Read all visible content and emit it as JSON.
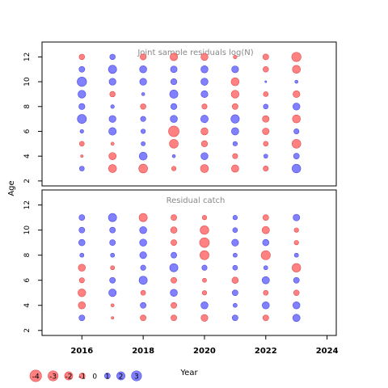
{
  "chart_data": [
    {
      "type": "scatter",
      "title": "Joint sample residuals log(N)",
      "xlabel": "Year",
      "ylabel": "Age",
      "xlim": [
        2014.7,
        2024.3
      ],
      "ylim": [
        1.6,
        13.2
      ],
      "yticks": [
        2,
        4,
        6,
        8,
        10,
        12
      ],
      "grid": false,
      "years": [
        2016,
        2017,
        2018,
        2019,
        2020,
        2021,
        2022,
        2023
      ],
      "ages": [
        3,
        4,
        5,
        6,
        7,
        8,
        9,
        10,
        11,
        12
      ],
      "residuals": [
        [
          0.7,
          -1.9,
          -2.3,
          -0.6,
          -1.9,
          -1.6,
          -0.8,
          2.2
        ],
        [
          -0.2,
          -1.6,
          1.9,
          0.3,
          1.5,
          -0.8,
          0.5,
          1.0
        ],
        [
          -0.7,
          -0.3,
          0.5,
          -2.3,
          -1.1,
          0.6,
          -0.7,
          -2.3
        ],
        [
          0.4,
          1.7,
          0.6,
          -3.3,
          -1.5,
          1.6,
          -1.3,
          0.8
        ],
        [
          2.4,
          1.4,
          0.8,
          1.5,
          1.7,
          2.1,
          -1.3,
          -1.9
        ],
        [
          1.1,
          0.4,
          -0.9,
          1.1,
          -0.8,
          -1.0,
          0.7,
          1.5
        ],
        [
          1.8,
          -0.9,
          0.3,
          2.0,
          1.4,
          -1.8,
          -0.7,
          -1.4
        ],
        [
          2.6,
          1.4,
          1.4,
          1.1,
          1.5,
          -1.9,
          0.1,
          0.3
        ],
        [
          1.0,
          2.0,
          1.5,
          1.3,
          1.5,
          1.4,
          -0.9,
          -1.9
        ],
        [
          -0.9,
          0.9,
          -1.1,
          -1.7,
          -1.5,
          -0.4,
          -1.0,
          -2.6
        ]
      ]
    },
    {
      "type": "scatter",
      "title": "Residual catch",
      "xlabel": "Year",
      "ylabel": "Age",
      "xlim": [
        2014.7,
        2024.3
      ],
      "ylim": [
        1.6,
        13.2
      ],
      "yticks": [
        2,
        4,
        6,
        8,
        10,
        12
      ],
      "xticks": [
        2016,
        2018,
        2020,
        2022,
        2024
      ],
      "grid": false,
      "years": [
        2016,
        2017,
        2018,
        2019,
        2020,
        2021,
        2022,
        2023
      ],
      "ages": [
        3,
        4,
        5,
        6,
        7,
        8,
        9,
        10,
        11
      ],
      "residuals": [
        [
          1.0,
          -0.2,
          -1.0,
          -1.0,
          -1.4,
          1.0,
          -1.0,
          1.6
        ],
        [
          -1.5,
          -0.3,
          1.0,
          -1.0,
          1.5,
          0.5,
          1.5,
          1.5
        ],
        [
          -1.8,
          1.7,
          -0.7,
          1.5,
          -0.6,
          1.0,
          -0.7,
          -0.9
        ],
        [
          -0.8,
          1.0,
          2.0,
          -1.0,
          -0.5,
          -1.2,
          1.6,
          1.0
        ],
        [
          -1.5,
          -0.5,
          0.8,
          2.0,
          0.8,
          0.7,
          0.5,
          -2.2
        ],
        [
          0.5,
          0.5,
          1.4,
          1.0,
          -2.4,
          0.5,
          -2.5,
          0.5
        ],
        [
          1.2,
          1.0,
          1.5,
          -1.0,
          -2.8,
          1.4,
          1.2,
          -0.6
        ],
        [
          1.0,
          1.0,
          1.5,
          -1.2,
          -2.2,
          0.7,
          -1.6,
          -0.6
        ],
        [
          1.0,
          2.0,
          -2.0,
          -1.0,
          -0.6,
          0.6,
          -1.0,
          1.3
        ]
      ]
    }
  ],
  "legend": {
    "items": [
      {
        "label": "-4",
        "value": -4
      },
      {
        "label": "-3",
        "value": -3
      },
      {
        "label": "-2",
        "value": -2
      },
      {
        "label": "-1",
        "value": -1
      },
      {
        "label": "0",
        "value": 0
      },
      {
        "label": "1",
        "value": 1
      },
      {
        "label": "2",
        "value": 2
      },
      {
        "label": "3",
        "value": 3
      }
    ]
  },
  "colors": {
    "positive": "#6b6bff",
    "negative": "#ff6b6b",
    "positive_edge": "#4b4be0",
    "negative_edge": "#e04b4b",
    "title": "#888888",
    "axis": "#000000"
  }
}
